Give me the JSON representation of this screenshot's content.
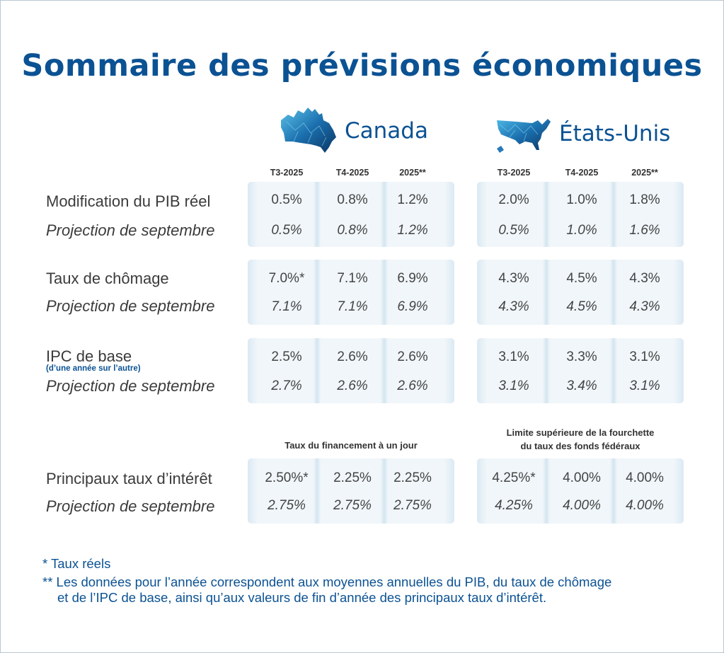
{
  "title": "Sommaire des prévisions économiques",
  "colors": {
    "brand": "#0b5293",
    "panel": "#f0f6fa"
  },
  "countries": [
    {
      "name": "Canada",
      "icon": "canada-map-icon"
    },
    {
      "name": "États-Unis",
      "icon": "usa-map-icon"
    }
  ],
  "columns": {
    "canada": [
      "T3-2025",
      "T4-2025",
      "2025**"
    ],
    "usa": [
      "T3-2025",
      "T4-2025",
      "2025**"
    ]
  },
  "rows": [
    {
      "label": "Modification du PIB réel",
      "sublabel": "",
      "projection_label": "Projection de septembre",
      "canada": [
        "0.5%",
        "0.8%",
        "1.2%"
      ],
      "canada_proj": [
        "0.5%",
        "0.8%",
        "1.2%"
      ],
      "usa": [
        "2.0%",
        "1.0%",
        "1.8%"
      ],
      "usa_proj": [
        "0.5%",
        "1.0%",
        "1.6%"
      ]
    },
    {
      "label": "Taux de chômage",
      "sublabel": "",
      "projection_label": "Projection de septembre",
      "canada": [
        "7.0%*",
        "7.1%",
        "6.9%"
      ],
      "canada_proj": [
        "7.1%",
        "7.1%",
        "6.9%"
      ],
      "usa": [
        "4.3%",
        "4.5%",
        "4.3%"
      ],
      "usa_proj": [
        "4.3%",
        "4.5%",
        "4.3%"
      ]
    },
    {
      "label": "IPC de base",
      "sublabel": "(d’une année sur l’autre)",
      "projection_label": "Projection de septembre",
      "canada": [
        "2.5%",
        "2.6%",
        "2.6%"
      ],
      "canada_proj": [
        "2.7%",
        "2.6%",
        "2.6%"
      ],
      "usa": [
        "3.1%",
        "3.3%",
        "3.1%"
      ],
      "usa_proj": [
        "3.1%",
        "3.4%",
        "3.1%"
      ]
    },
    {
      "label": "Principaux taux d’intérêt",
      "sublabel": "",
      "projection_label": "Projection de septembre",
      "canada": [
        "2.50%*",
        "2.25%",
        "2.25%"
      ],
      "canada_proj": [
        "2.75%",
        "2.75%",
        "2.75%"
      ],
      "usa": [
        "4.25%*",
        "4.00%",
        "4.00%"
      ],
      "usa_proj": [
        "4.25%",
        "4.00%",
        "4.00%"
      ]
    }
  ],
  "rate_headers": {
    "canada": "Taux du financement à un jour",
    "usa_line1": "Limite supérieure de la fourchette",
    "usa_line2": "du taux des fonds fédéraux"
  },
  "notes": {
    "n1": "* Taux réels",
    "n2_line1": "** Les données pour l’année correspondent aux moyennes annuelles du PIB, du taux de chômage",
    "n2_line2": "et de l’IPC de base, ainsi qu’aux valeurs de fin d’année des principaux taux d’intérêt."
  }
}
